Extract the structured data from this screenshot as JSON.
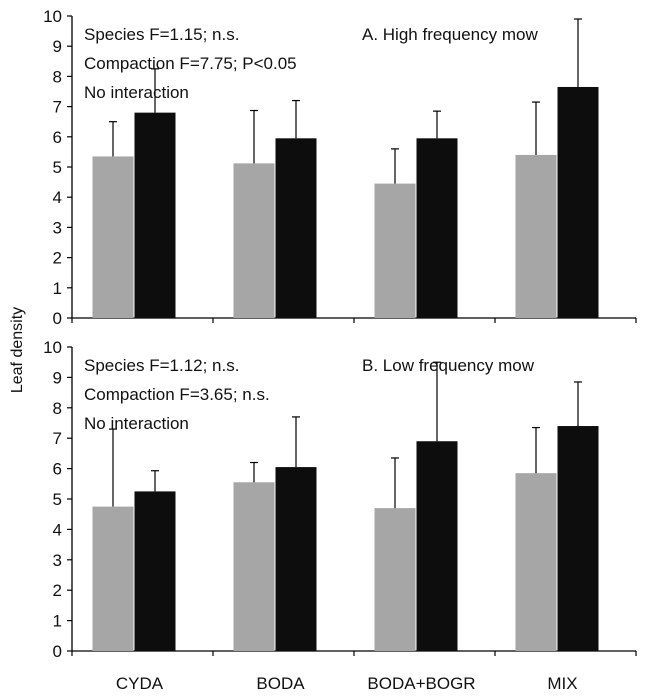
{
  "ylabel": "Leaf density",
  "categories": [
    "CYDA",
    "BODA",
    "BODA+BOGR",
    "MIX"
  ],
  "colors": {
    "series_a": "#a6a6a6",
    "series_b": "#0d0d0d"
  },
  "chart_data": [
    {
      "type": "bar",
      "title": "A. High frequency mow",
      "annotations": [
        "Species F=1.15; n.s.",
        "Compaction F=7.75; P<0.05",
        "No interaction"
      ],
      "categories": [
        "CYDA",
        "BODA",
        "BODA+BOGR",
        "MIX"
      ],
      "ylim": [
        0,
        10
      ],
      "yticks": [
        0,
        1,
        2,
        3,
        4,
        5,
        6,
        7,
        8,
        9,
        10
      ],
      "series": [
        {
          "values": [
            5.35,
            5.12,
            4.45,
            5.4
          ],
          "errors": [
            1.15,
            1.75,
            1.15,
            1.75
          ]
        },
        {
          "values": [
            6.8,
            5.95,
            5.95,
            7.65
          ],
          "errors": [
            1.45,
            1.25,
            0.9,
            2.25
          ]
        }
      ]
    },
    {
      "type": "bar",
      "title": "B. Low frequency mow",
      "annotations": [
        "Species F=1.12; n.s.",
        "Compaction F=3.65; n.s.",
        "No interaction"
      ],
      "categories": [
        "CYDA",
        "BODA",
        "BODA+BOGR",
        "MIX"
      ],
      "ylim": [
        0,
        10
      ],
      "yticks": [
        0,
        1,
        2,
        3,
        4,
        5,
        6,
        7,
        8,
        9,
        10
      ],
      "series": [
        {
          "values": [
            4.75,
            5.55,
            4.7,
            5.85
          ],
          "errors": [
            2.55,
            0.65,
            1.65,
            1.5
          ]
        },
        {
          "values": [
            5.25,
            6.05,
            6.9,
            7.4
          ],
          "errors": [
            0.68,
            1.65,
            2.6,
            1.45
          ]
        }
      ]
    }
  ]
}
